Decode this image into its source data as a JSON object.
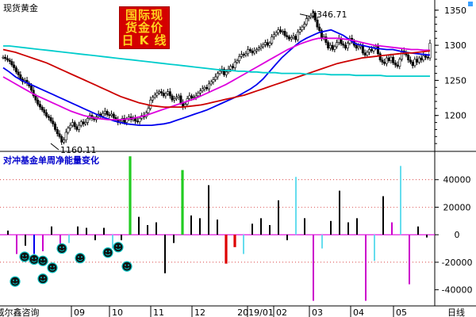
{
  "colors": {
    "up_candle": "#000000",
    "down_candle": "#000000",
    "ma_short": "#0000ee",
    "ma_mid": "#dd00dd",
    "ma_long": "#cc0000",
    "ma_longest": "#00cccc",
    "grid": "#cc0000",
    "axis": "#000000",
    "bar_positive": "#000000",
    "bar_negative": "#000000",
    "bar_green": "#22cc22",
    "bar_red": "#dd0000",
    "bar_cyan": "#66ddee",
    "bar_magenta": "#cc00cc",
    "bar_blue": "#0000ee",
    "smiley": "#00bfbf",
    "title_blue": "#0000cc",
    "watermark_bg": "#d40000",
    "watermark_fg": "#ffd21f"
  },
  "header": {
    "instrument": "现货黄金",
    "watermark_lines": [
      "国际现",
      "货金价",
      "日 K 线"
    ]
  },
  "chart_data": [
    {
      "type": "line",
      "title": "现货黄金",
      "ylim": [
        1150,
        1360
      ],
      "yticks": [
        1350,
        1300,
        1250,
        1200
      ],
      "annotations": [
        {
          "label": "1346.71",
          "value": 1346.71
        },
        {
          "label": "1160.11",
          "value": 1160.11
        }
      ],
      "x_labels": [
        "09",
        "10",
        "11",
        "12",
        "2019/01",
        "02",
        "03",
        "04",
        "05"
      ],
      "close": [
        1283,
        1281,
        1279,
        1277,
        1272,
        1268,
        1262,
        1258,
        1252,
        1248,
        1250,
        1246,
        1242,
        1236,
        1228,
        1222,
        1216,
        1212,
        1208,
        1204,
        1199,
        1197,
        1192,
        1188,
        1180,
        1174,
        1170,
        1162,
        1165,
        1176,
        1182,
        1186,
        1190,
        1184,
        1180,
        1186,
        1191,
        1188,
        1190,
        1196,
        1200,
        1196,
        1194,
        1198,
        1202,
        1199,
        1203,
        1206,
        1201,
        1200,
        1202,
        1197,
        1194,
        1190,
        1192,
        1196,
        1190,
        1195,
        1198,
        1194,
        1197,
        1192,
        1191,
        1196,
        1200,
        1198,
        1204,
        1210,
        1222,
        1226,
        1229,
        1232,
        1234,
        1232,
        1228,
        1231,
        1234,
        1228,
        1222,
        1224,
        1226,
        1228,
        1218,
        1212,
        1216,
        1224,
        1228,
        1225,
        1226,
        1228,
        1232,
        1235,
        1238,
        1240,
        1238,
        1245,
        1248,
        1251,
        1255,
        1260,
        1263,
        1266,
        1258,
        1262,
        1266,
        1270,
        1268,
        1276,
        1278,
        1284,
        1287,
        1286,
        1288,
        1294,
        1292,
        1289,
        1292,
        1294,
        1296,
        1298,
        1301,
        1304,
        1300,
        1303,
        1312,
        1315,
        1318,
        1322,
        1319,
        1320,
        1314,
        1312,
        1309,
        1311,
        1313,
        1308,
        1319,
        1322,
        1326,
        1330,
        1338,
        1340,
        1342,
        1346,
        1336,
        1326,
        1321,
        1310,
        1312,
        1304,
        1296,
        1300,
        1294,
        1298,
        1304,
        1310,
        1302,
        1300,
        1296,
        1303,
        1310,
        1306,
        1300,
        1296,
        1298,
        1300,
        1289,
        1286,
        1290,
        1294,
        1292,
        1296,
        1298,
        1288,
        1279,
        1276,
        1274,
        1282,
        1278,
        1283,
        1275,
        1272,
        1270,
        1280,
        1292,
        1290,
        1286,
        1279,
        1276,
        1271,
        1280,
        1276,
        1282,
        1279,
        1285,
        1283,
        1282,
        1303
      ],
      "series": [
        {
          "name": "MA-blue",
          "values": [
            1268,
            1262,
            1255,
            1250,
            1246,
            1242,
            1238,
            1234,
            1230,
            1226,
            1222,
            1218,
            1214,
            1210,
            1206,
            1202,
            1198,
            1195,
            1192,
            1190,
            1188,
            1187,
            1186,
            1186,
            1186,
            1187,
            1188,
            1190,
            1193,
            1196,
            1199,
            1202,
            1205,
            1208,
            1212,
            1216,
            1220,
            1224,
            1228,
            1233,
            1238,
            1244,
            1252,
            1262,
            1272,
            1282,
            1290,
            1298,
            1305,
            1310,
            1314,
            1318,
            1320,
            1322,
            1318,
            1314,
            1308,
            1302,
            1300,
            1298,
            1296,
            1295,
            1294,
            1294,
            1292,
            1290,
            1289,
            1288,
            1287,
            1286
          ]
        },
        {
          "name": "MA-magenta",
          "values": [
            1255,
            1250,
            1245,
            1240,
            1235,
            1230,
            1226,
            1222,
            1218,
            1214,
            1210,
            1206,
            1203,
            1200,
            1198,
            1196,
            1195,
            1194,
            1194,
            1194,
            1195,
            1196,
            1198,
            1200,
            1203,
            1206,
            1209,
            1212,
            1215,
            1218,
            1221,
            1224,
            1228,
            1232,
            1236,
            1240,
            1244,
            1249,
            1254,
            1259,
            1264,
            1269,
            1274,
            1279,
            1284,
            1289,
            1294,
            1298,
            1302,
            1305,
            1308,
            1310,
            1310,
            1310,
            1310,
            1309,
            1308,
            1306,
            1304,
            1302,
            1300,
            1299,
            1298,
            1297,
            1296,
            1295,
            1294,
            1294,
            1293,
            1293
          ]
        },
        {
          "name": "MA-red",
          "values": [
            1294,
            1292,
            1290,
            1287,
            1284,
            1281,
            1278,
            1275,
            1271,
            1267,
            1263,
            1259,
            1255,
            1251,
            1247,
            1243,
            1239,
            1235,
            1231,
            1227,
            1224,
            1221,
            1218,
            1216,
            1214,
            1213,
            1212,
            1212,
            1212,
            1212,
            1213,
            1214,
            1215,
            1217,
            1219,
            1221,
            1223,
            1225,
            1227,
            1229,
            1232,
            1235,
            1238,
            1241,
            1244,
            1247,
            1250,
            1253,
            1256,
            1259,
            1262,
            1265,
            1268,
            1271,
            1274,
            1276,
            1278,
            1280,
            1282,
            1283,
            1284,
            1285,
            1286,
            1287,
            1288,
            1289,
            1289,
            1290,
            1291,
            1292
          ]
        },
        {
          "name": "MA-cyan",
          "values": [
            1299,
            1299,
            1298,
            1297,
            1296,
            1295,
            1294,
            1293,
            1292,
            1291,
            1290,
            1289,
            1288,
            1287,
            1286,
            1285,
            1284,
            1283,
            1282,
            1281,
            1280,
            1279,
            1278,
            1277,
            1276,
            1275,
            1274,
            1273,
            1272,
            1271,
            1270,
            1269,
            1268,
            1267,
            1266,
            1265,
            1264,
            1264,
            1263,
            1263,
            1262,
            1262,
            1261,
            1261,
            1261,
            1260,
            1260,
            1260,
            1260,
            1259,
            1259,
            1259,
            1259,
            1258,
            1258,
            1258,
            1258,
            1257,
            1257,
            1257,
            1257,
            1257,
            1256,
            1256,
            1256,
            1256,
            1256,
            1256,
            1256,
            1256
          ]
        }
      ]
    },
    {
      "type": "bar",
      "title": "对冲基金单周净能量变化",
      "ylim": [
        -50000,
        60000
      ],
      "yticks": [
        40000,
        20000,
        0,
        -20000,
        -40000
      ],
      "x_labels": [
        "威尔鑫咨询",
        "09",
        "10",
        "11",
        "12",
        "2019/01",
        "02",
        "03",
        "04",
        "05",
        "日线"
      ],
      "bars": [
        {
          "v": 3000,
          "c": "bar_positive"
        },
        {
          "v": -14000,
          "c": "bar_magenta"
        },
        {
          "v": -8000,
          "c": "bar_positive"
        },
        {
          "v": -14000,
          "c": "bar_blue"
        },
        {
          "v": -12000,
          "c": "bar_magenta"
        },
        {
          "v": 6000,
          "c": "bar_positive"
        },
        {
          "v": -10000,
          "c": "bar_magenta"
        },
        {
          "v": -6000,
          "c": "bar_cyan"
        },
        {
          "v": 6000,
          "c": "bar_positive"
        },
        {
          "v": 5000,
          "c": "bar_positive"
        },
        {
          "v": -4000,
          "c": "bar_positive"
        },
        {
          "v": 5000,
          "c": "bar_positive"
        },
        {
          "v": -10000,
          "c": "bar_cyan"
        },
        {
          "v": -4000,
          "c": "bar_positive"
        },
        {
          "v": 57000,
          "c": "bar_green"
        },
        {
          "v": 13000,
          "c": "bar_positive"
        },
        {
          "v": 7000,
          "c": "bar_positive"
        },
        {
          "v": 9000,
          "c": "bar_positive"
        },
        {
          "v": -28000,
          "c": "bar_positive"
        },
        {
          "v": -6000,
          "c": "bar_positive"
        },
        {
          "v": 47000,
          "c": "bar_green"
        },
        {
          "v": 14000,
          "c": "bar_positive"
        },
        {
          "v": 12000,
          "c": "bar_positive"
        },
        {
          "v": 36000,
          "c": "bar_positive"
        },
        {
          "v": 11000,
          "c": "bar_positive"
        },
        {
          "v": -21000,
          "c": "bar_red"
        },
        {
          "v": -9000,
          "c": "bar_red"
        },
        {
          "v": -14000,
          "c": "bar_cyan"
        },
        {
          "v": 8000,
          "c": "bar_positive"
        },
        {
          "v": 12000,
          "c": "bar_positive"
        },
        {
          "v": 7000,
          "c": "bar_positive"
        },
        {
          "v": 25000,
          "c": "bar_positive"
        },
        {
          "v": -4000,
          "c": "bar_positive"
        },
        {
          "v": 42000,
          "c": "bar_cyan"
        },
        {
          "v": 12000,
          "c": "bar_positive"
        },
        {
          "v": -48000,
          "c": "bar_magenta"
        },
        {
          "v": -10000,
          "c": "bar_cyan"
        },
        {
          "v": 10000,
          "c": "bar_positive"
        },
        {
          "v": 32000,
          "c": "bar_positive"
        },
        {
          "v": 9000,
          "c": "bar_positive"
        },
        {
          "v": 12000,
          "c": "bar_positive"
        },
        {
          "v": -48000,
          "c": "bar_magenta"
        },
        {
          "v": -19000,
          "c": "bar_cyan"
        },
        {
          "v": 28000,
          "c": "bar_positive"
        },
        {
          "v": 9000,
          "c": "bar_magenta"
        },
        {
          "v": 50000,
          "c": "bar_cyan"
        },
        {
          "v": -36000,
          "c": "bar_magenta"
        },
        {
          "v": 6000,
          "c": "bar_positive"
        },
        {
          "v": -2000,
          "c": "bar_positive"
        }
      ],
      "smileys": [
        {
          "v": -34000
        },
        {
          "v": -16000
        },
        {
          "v": -18000
        },
        {
          "v": -19000
        },
        {
          "v": -32000
        },
        {
          "v": -24000
        },
        {
          "v": -10000
        },
        {
          "v": -17000
        },
        {
          "v": -13000
        },
        {
          "v": -9000
        },
        {
          "v": -23000
        }
      ]
    }
  ]
}
